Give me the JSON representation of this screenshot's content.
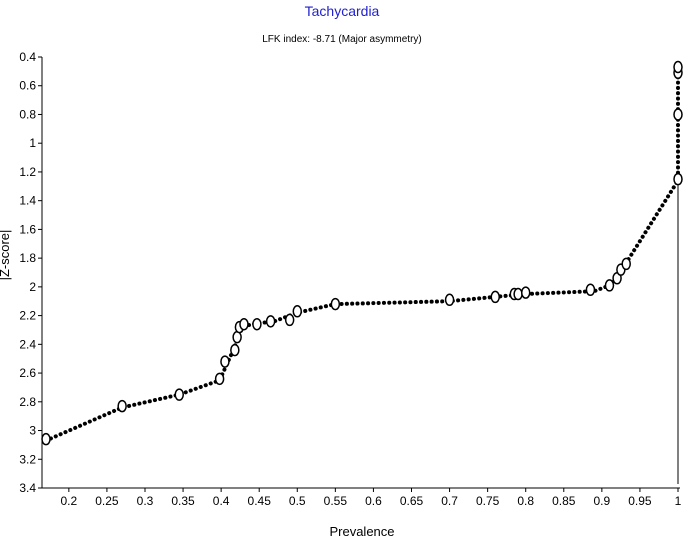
{
  "chart_data": {
    "type": "line",
    "title": "Tachycardia",
    "subtitle": "LFK index: -8.71 (Major asymmetry)",
    "xlabel": "Prevalence",
    "ylabel": "|Z-score|",
    "xlim": [
      0.17,
      1.0
    ],
    "ylim": [
      0.4,
      3.4
    ],
    "y_inverted": true,
    "x_ticks": [
      "0.2",
      "0.25",
      "0.3",
      "0.35",
      "0.4",
      "0.45",
      "0.5",
      "0.55",
      "0.6",
      "0.65",
      "0.7",
      "0.75",
      "0.8",
      "0.85",
      "0.9",
      "0.95",
      "1"
    ],
    "y_ticks": [
      "0.4",
      "0.6",
      "0.8",
      "1",
      "1.2",
      "1.4",
      "1.6",
      "1.8",
      "2",
      "2.2",
      "2.4",
      "2.6",
      "2.8",
      "3",
      "3.2",
      "3.4"
    ],
    "grid": false,
    "curve": [
      [
        0.17,
        3.07
      ],
      [
        0.27,
        2.84
      ],
      [
        0.345,
        2.75
      ],
      [
        0.398,
        2.65
      ],
      [
        0.415,
        2.45
      ],
      [
        0.428,
        2.28
      ],
      [
        0.44,
        2.26
      ],
      [
        0.47,
        2.24
      ],
      [
        0.5,
        2.18
      ],
      [
        0.55,
        2.12
      ],
      [
        0.7,
        2.1
      ],
      [
        0.76,
        2.07
      ],
      [
        0.8,
        2.05
      ],
      [
        0.89,
        2.03
      ],
      [
        0.91,
        1.99
      ],
      [
        0.92,
        1.94
      ],
      [
        0.93,
        1.85
      ],
      [
        1.0,
        1.26
      ],
      [
        1.0,
        0.48
      ]
    ],
    "points": [
      {
        "x": 0.17,
        "y": 3.06
      },
      {
        "x": 0.27,
        "y": 2.83
      },
      {
        "x": 0.345,
        "y": 2.75
      },
      {
        "x": 0.398,
        "y": 2.64
      },
      {
        "x": 0.405,
        "y": 2.52
      },
      {
        "x": 0.418,
        "y": 2.44
      },
      {
        "x": 0.421,
        "y": 2.35
      },
      {
        "x": 0.424,
        "y": 2.28
      },
      {
        "x": 0.43,
        "y": 2.26
      },
      {
        "x": 0.447,
        "y": 2.26
      },
      {
        "x": 0.465,
        "y": 2.24
      },
      {
        "x": 0.49,
        "y": 2.23
      },
      {
        "x": 0.5,
        "y": 2.17
      },
      {
        "x": 0.55,
        "y": 2.12
      },
      {
        "x": 0.7,
        "y": 2.09
      },
      {
        "x": 0.76,
        "y": 2.07
      },
      {
        "x": 0.785,
        "y": 2.05
      },
      {
        "x": 0.79,
        "y": 2.05
      },
      {
        "x": 0.8,
        "y": 2.04
      },
      {
        "x": 0.885,
        "y": 2.02
      },
      {
        "x": 0.91,
        "y": 1.99
      },
      {
        "x": 0.92,
        "y": 1.94
      },
      {
        "x": 0.925,
        "y": 1.88
      },
      {
        "x": 0.932,
        "y": 1.84
      },
      {
        "x": 1.0,
        "y": 1.25
      },
      {
        "x": 1.0,
        "y": 0.8
      },
      {
        "x": 1.0,
        "y": 0.51
      },
      {
        "x": 1.0,
        "y": 0.47
      }
    ]
  }
}
